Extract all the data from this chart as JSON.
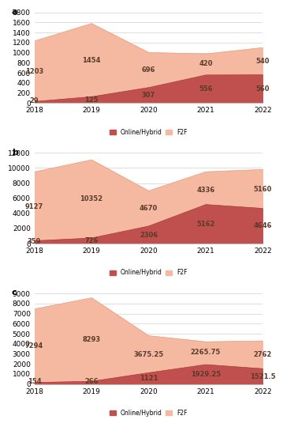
{
  "years": [
    2018,
    2019,
    2020,
    2021,
    2022
  ],
  "panels": [
    {
      "label": "a",
      "online_hybrid": [
        29,
        125,
        307,
        556,
        560
      ],
      "f2f": [
        1203,
        1454,
        696,
        420,
        540
      ],
      "ylim": [
        0,
        1800
      ],
      "yticks": [
        0,
        200,
        400,
        600,
        800,
        1000,
        1200,
        1400,
        1600,
        1800
      ]
    },
    {
      "label": "b",
      "online_hybrid": [
        359,
        726,
        2306,
        5162,
        4646
      ],
      "f2f": [
        9127,
        10352,
        4670,
        4336,
        5160
      ],
      "ylim": [
        0,
        12000
      ],
      "yticks": [
        0,
        2000,
        4000,
        6000,
        8000,
        10000,
        12000
      ]
    },
    {
      "label": "c",
      "online_hybrid": [
        154,
        266,
        1121,
        1929.25,
        1521.5
      ],
      "f2f": [
        7294,
        8293,
        3675.25,
        2265.75,
        2762
      ],
      "ylim": [
        0,
        9000
      ],
      "yticks": [
        0,
        1000,
        2000,
        3000,
        4000,
        5000,
        6000,
        7000,
        8000,
        9000
      ]
    }
  ],
  "color_online": "#c0504d",
  "color_f2f": "#f4b9a0",
  "legend_labels": [
    "Online/Hybrid",
    "F2F"
  ],
  "years_labels": [
    "2018",
    "2019",
    "2020",
    "2021",
    "2022"
  ],
  "annotation_fontsize": 6.0,
  "label_fontsize": 8,
  "tick_fontsize": 6.5,
  "ann_color": "#5a3a2a",
  "ann_f2f_positions": [
    [
      [
        0.35,
        0.65,
        0.45,
        0.65,
        0.65
      ],
      [
        0.35,
        0.65,
        0.45,
        0.65,
        0.65
      ],
      [
        0.45,
        0.55,
        0.45,
        0.55,
        0.55
      ]
    ],
    [
      [
        0.35,
        0.65,
        0.45,
        0.65,
        0.65
      ],
      [
        0.35,
        0.65,
        0.45,
        0.65,
        0.65
      ],
      [
        0.45,
        0.55,
        0.45,
        0.55,
        0.55
      ]
    ]
  ]
}
